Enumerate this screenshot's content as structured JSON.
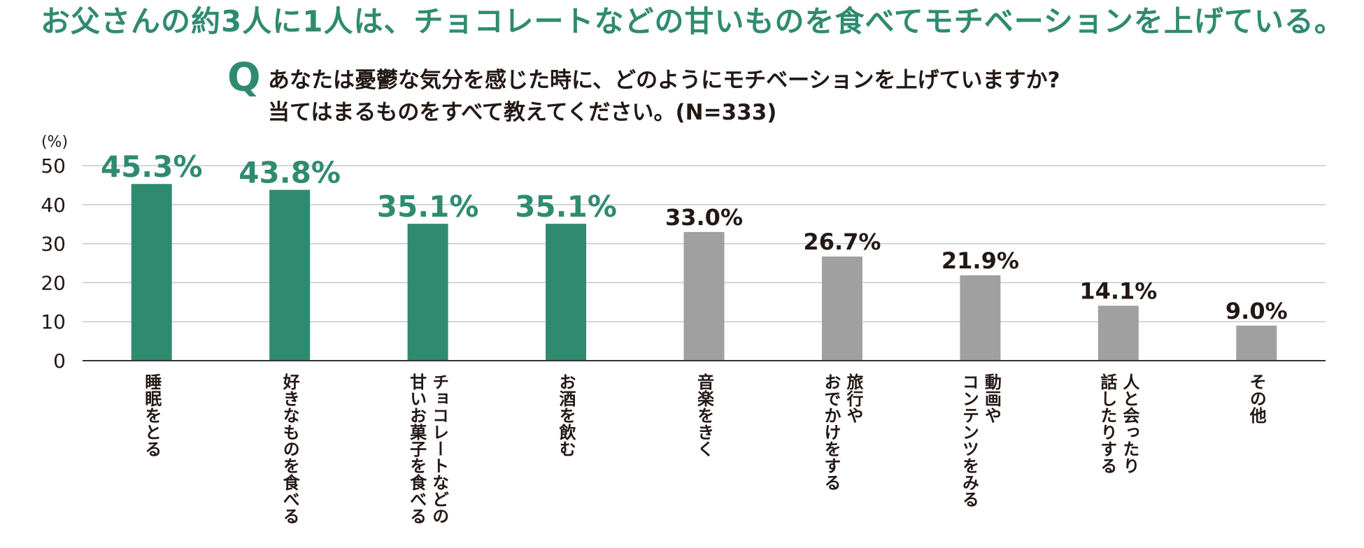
{
  "headline": "お父さんの約3人に1人は、チョコレートなどの甘いものを食べてモチベーションを上げている。",
  "question": {
    "mark": "Q",
    "line1": "あなたは憂鬱な気分を感じた時に、どのようにモチベーションを上げていますか?",
    "line2": "当てはまるものをすべて教えてください。(N=333)"
  },
  "colors": {
    "highlight": "#2f8b6f",
    "default": "#a0a0a0",
    "text": "#231815",
    "grid": "#c8c8c8"
  },
  "chart_data": {
    "type": "bar",
    "y_unit": "(%)",
    "ylim": [
      0,
      50
    ],
    "yticks": [
      0,
      10,
      20,
      30,
      40,
      50
    ],
    "grid": true,
    "categories": [
      [
        "睡眠をとる"
      ],
      [
        "好きなものを食べる"
      ],
      [
        "チョコレートなどの",
        "甘いお菓子を食べる"
      ],
      [
        "お酒を飲む"
      ],
      [
        "音楽をきく"
      ],
      [
        "旅行や",
        "おでかけをする"
      ],
      [
        "動画や",
        "コンテンツをみる"
      ],
      [
        "人と会ったり",
        "話したりする"
      ],
      [
        "その他"
      ]
    ],
    "values": [
      45.3,
      43.8,
      35.1,
      35.1,
      33.0,
      26.7,
      21.9,
      14.1,
      9.0
    ],
    "value_labels": [
      "45.3%",
      "43.8%",
      "35.1%",
      "35.1%",
      "33.0%",
      "26.7%",
      "21.9%",
      "14.1%",
      "9.0%"
    ],
    "highlighted": [
      true,
      true,
      true,
      true,
      false,
      false,
      false,
      false,
      false
    ]
  }
}
